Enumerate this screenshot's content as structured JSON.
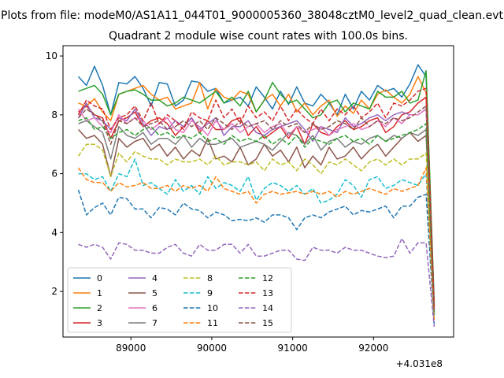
{
  "figure": {
    "title_line1": "Plots from file: modeM0/AS1A11_044T01_9000005360_38048cztM0_level2_quad_clean.evt",
    "title_line2": "Quadrant 2 module wise count rates with 100.0s bins."
  },
  "chart_data": {
    "type": "line",
    "title": "Quadrant 2 module wise count rates with 100.0s bins.",
    "xlabel": "",
    "ylabel": "",
    "x_offset_label": "+4.031e8",
    "xlim": [
      88160,
      92990
    ],
    "ylim": [
      0.45,
      10.35
    ],
    "grid": false,
    "legend_position": "lower-left",
    "legend_columns": 4,
    "x_ticks": [
      89000,
      90000,
      91000,
      92000
    ],
    "x_tick_labels": [
      "89000",
      "90000",
      "91000",
      "92000"
    ],
    "y_ticks": [
      2,
      4,
      6,
      8,
      10
    ],
    "y_tick_labels": [
      "2",
      "4",
      "6",
      "8",
      "10"
    ],
    "x": [
      88350,
      88450,
      88550,
      88650,
      88750,
      88850,
      88950,
      89050,
      89150,
      89250,
      89350,
      89450,
      89550,
      89650,
      89750,
      89850,
      89950,
      90050,
      90150,
      90250,
      90350,
      90450,
      90550,
      90650,
      90750,
      90850,
      90950,
      91050,
      91150,
      91250,
      91350,
      91450,
      91550,
      91650,
      91750,
      91850,
      91950,
      92050,
      92150,
      92250,
      92350,
      92450,
      92550,
      92650,
      92750
    ],
    "series": [
      {
        "name": "0",
        "color": "#1f77b4",
        "dash": "solid",
        "values": [
          9.3,
          9.0,
          9.65,
          9.0,
          8.0,
          9.1,
          9.05,
          9.3,
          8.9,
          8.3,
          9.1,
          9.05,
          8.3,
          8.5,
          9.15,
          9.1,
          8.8,
          8.9,
          8.4,
          8.5,
          8.6,
          8.3,
          8.95,
          8.6,
          8.2,
          8.8,
          8.35,
          8.95,
          8.4,
          8.3,
          8.7,
          8.4,
          8.0,
          8.7,
          8.2,
          8.8,
          8.5,
          9.0,
          8.8,
          8.9,
          8.6,
          9.05,
          9.7,
          9.3,
          1.5
        ]
      },
      {
        "name": "1",
        "color": "#ff7f0e",
        "dash": "solid",
        "values": [
          8.4,
          8.3,
          8.55,
          8.1,
          7.8,
          8.7,
          8.8,
          8.9,
          9.0,
          8.7,
          8.5,
          8.6,
          8.2,
          8.3,
          8.4,
          9.1,
          8.2,
          8.9,
          8.6,
          8.5,
          8.8,
          8.7,
          8.1,
          8.5,
          8.7,
          8.3,
          8.7,
          8.1,
          8.4,
          8.0,
          8.3,
          8.5,
          7.95,
          8.3,
          8.05,
          8.5,
          8.2,
          8.7,
          8.85,
          8.6,
          8.4,
          8.7,
          9.3,
          8.75,
          1.45
        ]
      },
      {
        "name": "2",
        "color": "#2ca02c",
        "dash": "solid",
        "values": [
          8.8,
          8.9,
          9.0,
          8.7,
          8.0,
          8.7,
          8.8,
          8.85,
          8.7,
          8.5,
          8.5,
          8.3,
          8.4,
          8.6,
          8.5,
          8.4,
          8.6,
          8.8,
          8.4,
          8.6,
          8.3,
          8.8,
          8.1,
          8.5,
          9.1,
          8.7,
          8.4,
          8.5,
          8.2,
          7.9,
          8.0,
          8.4,
          8.5,
          8.1,
          8.4,
          8.3,
          8.2,
          8.8,
          8.6,
          8.6,
          8.8,
          8.4,
          8.5,
          9.5,
          1.6
        ]
      },
      {
        "name": "3",
        "color": "#d62728",
        "dash": "solid",
        "values": [
          8.1,
          8.3,
          8.0,
          7.9,
          7.2,
          7.8,
          7.9,
          8.1,
          7.6,
          7.8,
          7.9,
          7.7,
          7.3,
          7.6,
          7.9,
          7.4,
          7.8,
          7.5,
          7.5,
          7.8,
          7.9,
          7.3,
          7.6,
          7.2,
          7.4,
          7.6,
          7.2,
          7.6,
          7.0,
          7.7,
          7.4,
          7.3,
          7.6,
          7.8,
          7.5,
          7.6,
          7.8,
          7.9,
          7.4,
          7.6,
          8.0,
          8.1,
          8.4,
          8.6,
          1.4
        ]
      },
      {
        "name": "4",
        "color": "#9467bd",
        "dash": "solid",
        "values": [
          7.9,
          8.4,
          7.9,
          7.8,
          7.5,
          7.9,
          7.8,
          8.2,
          7.7,
          7.3,
          7.6,
          7.5,
          7.8,
          7.6,
          7.9,
          7.5,
          7.7,
          7.9,
          7.3,
          7.6,
          7.6,
          7.8,
          7.4,
          7.3,
          7.5,
          7.6,
          7.7,
          7.8,
          7.5,
          7.1,
          7.6,
          7.5,
          7.4,
          7.9,
          7.6,
          7.7,
          7.9,
          8.0,
          7.8,
          8.0,
          8.1,
          8.0,
          8.0,
          8.2,
          1.2
        ]
      },
      {
        "name": "5",
        "color": "#8c564b",
        "dash": "solid",
        "values": [
          7.5,
          7.2,
          7.3,
          7.0,
          5.9,
          7.2,
          6.9,
          7.1,
          7.2,
          6.8,
          7.0,
          6.6,
          6.9,
          6.5,
          6.8,
          6.6,
          7.2,
          6.5,
          6.6,
          6.4,
          6.9,
          6.3,
          6.5,
          7.0,
          6.6,
          6.8,
          6.4,
          6.9,
          6.2,
          6.6,
          6.3,
          6.9,
          6.5,
          6.6,
          6.9,
          6.5,
          6.8,
          7.0,
          6.6,
          6.9,
          7.2,
          7.4,
          7.1,
          7.3,
          1.3
        ]
      },
      {
        "name": "6",
        "color": "#e377c2",
        "dash": "solid",
        "values": [
          8.2,
          7.8,
          7.9,
          7.6,
          7.4,
          8.0,
          7.7,
          7.9,
          7.8,
          7.5,
          7.7,
          7.9,
          7.5,
          7.4,
          7.8,
          7.6,
          7.3,
          7.8,
          7.5,
          7.7,
          7.4,
          7.6,
          7.7,
          7.4,
          7.6,
          7.7,
          7.3,
          7.6,
          7.4,
          7.5,
          7.6,
          7.3,
          7.5,
          7.6,
          7.7,
          7.5,
          7.6,
          7.8,
          7.6,
          7.9,
          7.7,
          8.0,
          8.0,
          8.2,
          1.3
        ]
      },
      {
        "name": "7",
        "color": "#7f7f7f",
        "dash": "solid",
        "values": [
          7.7,
          7.8,
          7.6,
          7.4,
          6.5,
          7.6,
          7.3,
          7.2,
          7.4,
          7.0,
          7.2,
          7.2,
          7.0,
          7.3,
          6.9,
          7.2,
          7.0,
          7.0,
          7.1,
          7.2,
          6.9,
          7.0,
          7.1,
          7.0,
          6.8,
          7.1,
          7.4,
          7.3,
          7.0,
          7.3,
          6.8,
          7.1,
          7.2,
          6.9,
          7.1,
          7.0,
          7.2,
          7.3,
          7.1,
          7.3,
          7.2,
          7.4,
          7.3,
          7.5,
          1.25
        ]
      },
      {
        "name": "8",
        "color": "#bcbd22",
        "dash": "dashed",
        "values": [
          6.6,
          7.0,
          7.0,
          6.8,
          5.9,
          6.7,
          6.4,
          6.75,
          6.6,
          6.5,
          6.5,
          6.3,
          6.5,
          6.4,
          6.4,
          6.5,
          6.3,
          6.6,
          6.3,
          6.4,
          6.4,
          6.3,
          6.4,
          6.1,
          6.5,
          6.3,
          6.4,
          6.1,
          6.5,
          6.3,
          6.0,
          6.4,
          6.3,
          6.5,
          6.3,
          6.1,
          6.4,
          6.5,
          6.3,
          6.5,
          6.3,
          6.5,
          6.5,
          6.7,
          1.2
        ]
      },
      {
        "name": "9",
        "color": "#17becf",
        "dash": "dashed",
        "values": [
          6.0,
          6.0,
          5.8,
          5.9,
          5.4,
          6.0,
          5.9,
          6.5,
          5.6,
          5.7,
          5.5,
          5.3,
          5.8,
          5.4,
          5.6,
          5.3,
          5.9,
          5.5,
          5.7,
          5.6,
          5.4,
          5.9,
          5.1,
          5.5,
          5.7,
          5.6,
          5.4,
          5.6,
          5.3,
          5.5,
          5.0,
          5.1,
          5.3,
          5.8,
          5.6,
          5.2,
          5.8,
          5.9,
          5.5,
          5.6,
          5.8,
          5.7,
          5.6,
          6.0,
          1.1
        ]
      },
      {
        "name": "10",
        "color": "#1f77b4",
        "dash": "dashed",
        "values": [
          5.45,
          4.6,
          4.85,
          5.0,
          4.6,
          5.2,
          5.15,
          4.8,
          4.8,
          4.5,
          4.85,
          4.8,
          4.6,
          5.0,
          4.8,
          4.75,
          4.5,
          4.7,
          4.6,
          4.4,
          4.45,
          4.4,
          4.5,
          4.35,
          4.6,
          4.6,
          4.5,
          4.1,
          4.5,
          4.6,
          4.5,
          4.7,
          4.8,
          4.9,
          4.6,
          4.75,
          4.7,
          4.8,
          4.9,
          4.5,
          4.9,
          4.9,
          5.2,
          5.3,
          0.9
        ]
      },
      {
        "name": "11",
        "color": "#ff7f0e",
        "dash": "dashed",
        "values": [
          6.2,
          5.8,
          5.7,
          5.7,
          5.4,
          5.7,
          5.55,
          5.6,
          5.7,
          5.5,
          5.5,
          5.6,
          5.4,
          5.6,
          5.5,
          5.6,
          5.4,
          5.9,
          5.5,
          5.4,
          5.3,
          5.4,
          5.0,
          5.3,
          5.4,
          5.3,
          5.35,
          5.4,
          5.3,
          5.4,
          5.3,
          5.4,
          5.2,
          5.4,
          5.3,
          5.4,
          5.5,
          5.4,
          5.3,
          5.5,
          5.4,
          5.5,
          5.6,
          6.2,
          1.0
        ]
      },
      {
        "name": "12",
        "color": "#2ca02c",
        "dash": "dashed",
        "values": [
          7.8,
          7.9,
          7.5,
          7.6,
          7.2,
          7.4,
          7.5,
          7.3,
          7.5,
          7.6,
          7.3,
          7.4,
          7.2,
          7.3,
          7.2,
          7.4,
          7.1,
          7.2,
          7.0,
          7.3,
          7.1,
          7.2,
          7.1,
          7.3,
          7.0,
          7.2,
          7.0,
          7.3,
          6.9,
          7.2,
          7.1,
          7.0,
          7.2,
          7.3,
          7.1,
          7.2,
          7.0,
          7.3,
          7.1,
          7.2,
          7.3,
          7.4,
          7.5,
          7.7,
          1.2
        ]
      },
      {
        "name": "13",
        "color": "#d62728",
        "dash": "dashed",
        "values": [
          8.0,
          8.5,
          8.3,
          8.2,
          7.5,
          7.9,
          8.0,
          8.3,
          7.8,
          8.4,
          7.7,
          8.0,
          7.8,
          7.5,
          8.1,
          7.9,
          7.8,
          8.5,
          7.9,
          8.2,
          7.7,
          8.3,
          7.9,
          8.1,
          7.8,
          8.3,
          7.8,
          8.2,
          7.9,
          7.7,
          8.2,
          7.8,
          8.2,
          8.0,
          8.3,
          7.9,
          8.1,
          8.4,
          7.9,
          8.4,
          8.3,
          8.5,
          8.8,
          8.9,
          1.5
        ]
      },
      {
        "name": "14",
        "color": "#9467bd",
        "dash": "dashed",
        "values": [
          3.6,
          3.5,
          3.6,
          3.5,
          3.1,
          3.65,
          3.6,
          3.4,
          3.4,
          3.3,
          3.3,
          3.5,
          3.6,
          3.3,
          3.2,
          3.6,
          3.4,
          3.4,
          3.6,
          3.6,
          3.3,
          3.6,
          3.2,
          3.2,
          3.3,
          3.4,
          3.4,
          3.1,
          3.05,
          3.5,
          3.4,
          3.4,
          3.3,
          3.5,
          3.4,
          3.4,
          3.3,
          3.2,
          3.15,
          3.2,
          3.8,
          3.3,
          3.65,
          3.65,
          0.8
        ]
      },
      {
        "name": "15",
        "color": "#8c564b",
        "dash": "dashed",
        "values": [
          7.9,
          8.2,
          8.0,
          7.8,
          7.0,
          7.8,
          7.7,
          7.9,
          7.6,
          7.7,
          7.8,
          7.5,
          7.6,
          7.8,
          7.6,
          7.8,
          7.5,
          7.9,
          7.7,
          7.5,
          7.8,
          7.6,
          7.7,
          7.8,
          7.5,
          7.8,
          7.6,
          7.7,
          7.4,
          7.7,
          7.5,
          7.6,
          7.8,
          7.7,
          7.5,
          7.9,
          7.6,
          7.8,
          7.7,
          7.9,
          7.8,
          7.9,
          8.1,
          8.3,
          1.3
        ]
      }
    ]
  }
}
